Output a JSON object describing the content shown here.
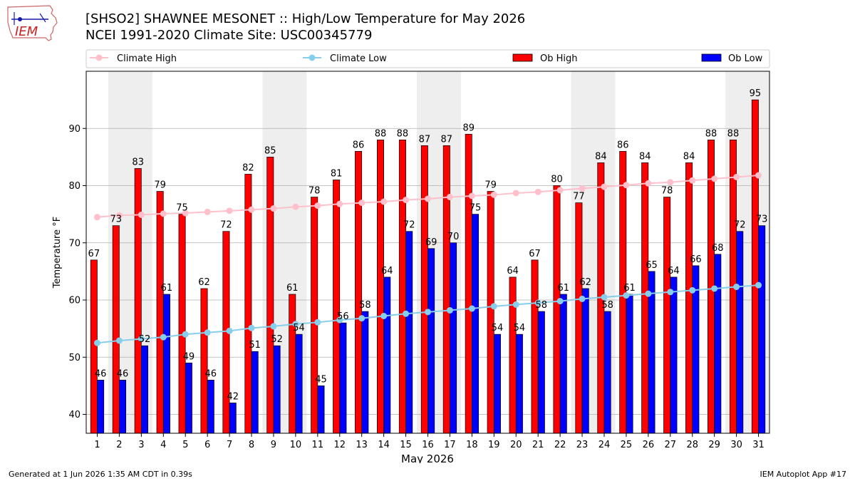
{
  "header": {
    "title_line1": "[SHSO2] SHAWNEE MESONET :: High/Low Temperature for May 2026",
    "title_line2": "NCEI 1991-2020 Climate Site: USC00345779",
    "logo_text": "IEM"
  },
  "footer": {
    "generated": "Generated at 1 Jun 2026 1:35 AM CDT in 0.39s",
    "app": "IEM Autoplot App #17"
  },
  "colors": {
    "ob_high": "#ff0000",
    "ob_low": "#0000ff",
    "climate_high": "#ffc0cb",
    "climate_low": "#87ceeb",
    "weekend_band": "#eeeeee",
    "grid": "#b0b0b0"
  },
  "chart_data": {
    "type": "bar",
    "xlabel": "May 2026",
    "ylabel": "Temperature °F",
    "ylim": [
      36.7,
      100
    ],
    "yticks": [
      40,
      50,
      60,
      70,
      80,
      90
    ],
    "grid": "horizontal",
    "legend_placement": "top",
    "shaded_days": [
      [
        2,
        3
      ],
      [
        9,
        10
      ],
      [
        16,
        17
      ],
      [
        23,
        24
      ],
      [
        30,
        31
      ]
    ],
    "categories": [
      "1",
      "2",
      "3",
      "4",
      "5",
      "6",
      "7",
      "8",
      "9",
      "10",
      "11",
      "12",
      "13",
      "14",
      "15",
      "16",
      "17",
      "18",
      "19",
      "20",
      "21",
      "22",
      "23",
      "24",
      "25",
      "26",
      "27",
      "28",
      "29",
      "30",
      "31"
    ],
    "series": [
      {
        "name": "Climate High",
        "kind": "line",
        "values": [
          74.5,
          74.8,
          74.9,
          75.1,
          75.2,
          75.4,
          75.6,
          75.8,
          76.0,
          76.3,
          76.5,
          76.8,
          77.0,
          77.2,
          77.5,
          77.7,
          78.0,
          78.2,
          78.4,
          78.7,
          78.9,
          79.2,
          79.5,
          79.8,
          80.1,
          80.4,
          80.6,
          80.9,
          81.2,
          81.5,
          81.8
        ]
      },
      {
        "name": "Climate Low",
        "kind": "line",
        "values": [
          52.5,
          52.9,
          53.2,
          53.5,
          54.0,
          54.3,
          54.6,
          55.1,
          55.4,
          55.8,
          56.1,
          56.5,
          56.8,
          57.2,
          57.6,
          57.9,
          58.2,
          58.5,
          58.9,
          59.2,
          59.5,
          59.8,
          60.2,
          60.5,
          60.8,
          61.1,
          61.4,
          61.7,
          62.0,
          62.3,
          62.6
        ]
      },
      {
        "name": "Ob High",
        "kind": "bar",
        "values": [
          67,
          73,
          83,
          79,
          75,
          62,
          72,
          82,
          85,
          61,
          78,
          81,
          86,
          88,
          88,
          87,
          87,
          89,
          79,
          64,
          67,
          80,
          77,
          84,
          86,
          84,
          78,
          84,
          88,
          88,
          95
        ]
      },
      {
        "name": "Ob Low",
        "kind": "bar",
        "values": [
          46,
          46,
          52,
          61,
          49,
          46,
          42,
          51,
          52,
          54,
          45,
          56,
          58,
          64,
          72,
          69,
          70,
          75,
          54,
          54,
          58,
          61,
          62,
          58,
          61,
          65,
          64,
          66,
          68,
          72,
          73
        ]
      }
    ]
  }
}
